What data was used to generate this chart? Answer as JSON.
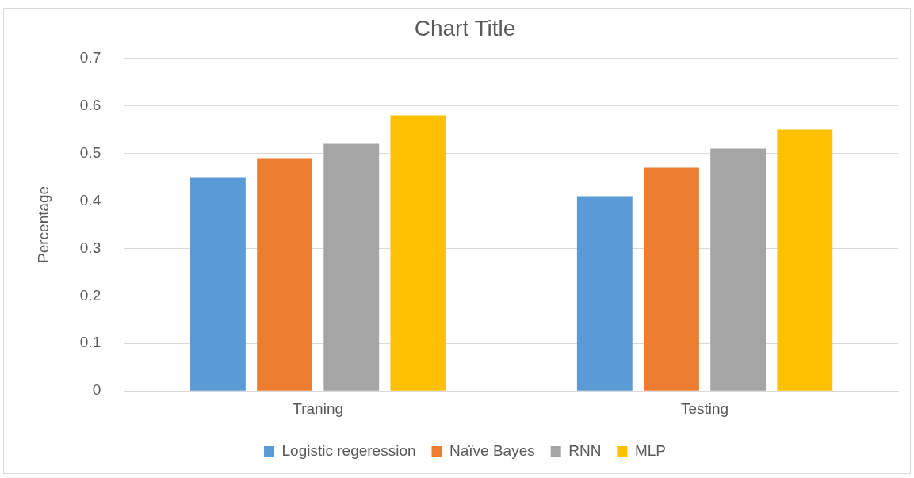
{
  "chart_data": {
    "type": "bar",
    "title": "Chart Title",
    "ylabel": "Percentage",
    "categories": [
      "Traning",
      "Testing"
    ],
    "series": [
      {
        "name": "Logistic regeression",
        "color": "#5b9bd5",
        "values": [
          0.45,
          0.41
        ]
      },
      {
        "name": "Naïve Bayes",
        "color": "#ed7d31",
        "values": [
          0.49,
          0.47
        ]
      },
      {
        "name": "RNN",
        "color": "#a5a5a5",
        "values": [
          0.52,
          0.51
        ]
      },
      {
        "name": "MLP",
        "color": "#ffc000",
        "values": [
          0.58,
          0.55
        ]
      }
    ],
    "ylim": [
      0,
      0.7
    ],
    "yticks": [
      0,
      0.1,
      0.2,
      0.3,
      0.4,
      0.5,
      0.6,
      0.7
    ],
    "grid": "y",
    "legend": "bottom"
  }
}
